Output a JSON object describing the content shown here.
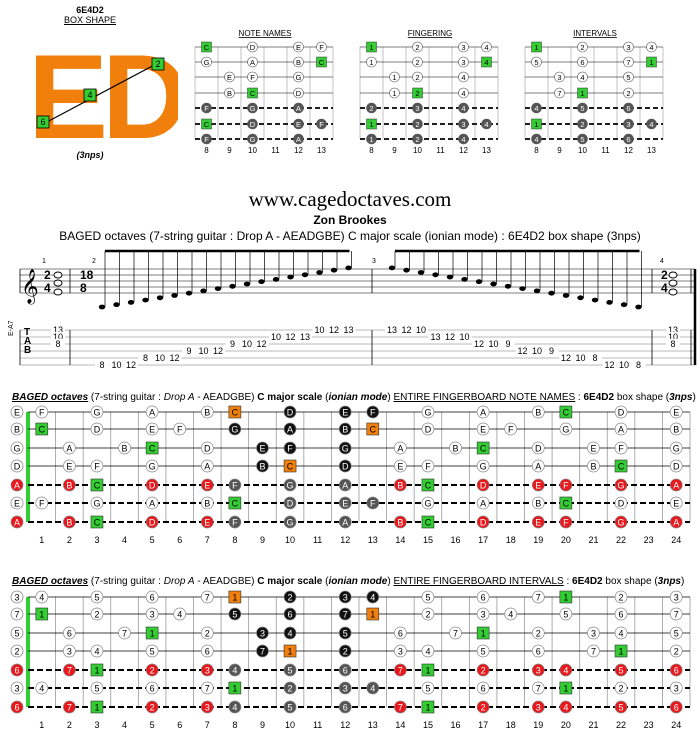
{
  "header": {
    "shape_code": "6E4D2",
    "box_shape_label": "BOX SHAPE",
    "logo_letters": "ED",
    "nps_label": "(3nps)",
    "logo_markers": [
      "2",
      "4",
      "6"
    ],
    "logo_color": "#f07f0b",
    "diagram_titles": [
      "NOTE NAMES",
      "FINGERING",
      "INTERVALS"
    ],
    "fret_numbers": [
      "8",
      "9",
      "10",
      "11",
      "12",
      "13"
    ],
    "note_names_rows": [
      [
        "C",
        "",
        "D",
        "",
        "E",
        "F"
      ],
      [
        "G",
        "",
        "A",
        "",
        "B",
        "C"
      ],
      [
        "",
        "E",
        "F",
        "",
        "G",
        ""
      ],
      [
        "",
        "B",
        "C",
        "",
        "D",
        ""
      ],
      [
        "F",
        "",
        "G",
        "",
        "A",
        ""
      ],
      [
        "C",
        "",
        "D",
        "",
        "E",
        "F"
      ],
      [
        "F",
        "",
        "G",
        "",
        "A",
        ""
      ]
    ],
    "fingering_rows": [
      [
        "1",
        "",
        "2",
        "",
        "3",
        "4"
      ],
      [
        "1",
        "",
        "2",
        "",
        "3",
        "4"
      ],
      [
        "",
        "1",
        "2",
        "",
        "4",
        ""
      ],
      [
        "",
        "1",
        "2",
        "",
        "4",
        ""
      ],
      [
        "2",
        "",
        "3",
        "",
        "4",
        ""
      ],
      [
        "1",
        "",
        "2",
        "",
        "3",
        "4"
      ],
      [
        "1",
        "",
        "2",
        "",
        "4",
        ""
      ]
    ],
    "intervals_rows": [
      [
        "1",
        "",
        "2",
        "",
        "3",
        "4"
      ],
      [
        "5",
        "",
        "6",
        "",
        "7",
        "1"
      ],
      [
        "",
        "3",
        "4",
        "",
        "5",
        ""
      ],
      [
        "",
        "7",
        "1",
        "",
        "2",
        ""
      ],
      [
        "4",
        "",
        "5",
        "",
        "6",
        ""
      ],
      [
        "1",
        "",
        "2",
        "",
        "3",
        "4"
      ],
      [
        "4",
        "",
        "5",
        "",
        "6",
        ""
      ]
    ]
  },
  "site_title": "www.cagedoctaves.com",
  "composer": "Zon Brookes",
  "subtitle": "BAGED octaves (7-string guitar : Drop A - AEADGBE) C major scale (ionian mode) : 6E4D2 box shape (3nps)",
  "staff": {
    "time_sig_left": [
      "2",
      "4"
    ],
    "time_sig_mid": [
      "18",
      "8"
    ],
    "time_sig_right": [
      "2",
      "4"
    ],
    "measure_numbers": [
      "1",
      "2",
      "3",
      "4"
    ],
    "tab_label": "T A B",
    "string_label": "E-A7",
    "tab_notes": [
      {
        "n": "13",
        "s": 1
      },
      {
        "n": "10",
        "s": 2
      },
      {
        "n": "8",
        "s": 3
      },
      {
        "n": "8",
        "s": 6
      },
      {
        "n": "10",
        "s": 6
      },
      {
        "n": "12",
        "s": 6
      },
      {
        "n": "8",
        "s": 5
      },
      {
        "n": "10",
        "s": 5
      },
      {
        "n": "12",
        "s": 5
      },
      {
        "n": "9",
        "s": 4
      },
      {
        "n": "10",
        "s": 4
      },
      {
        "n": "12",
        "s": 4
      },
      {
        "n": "9",
        "s": 3
      },
      {
        "n": "10",
        "s": 3
      },
      {
        "n": "12",
        "s": 3
      },
      {
        "n": "10",
        "s": 2
      },
      {
        "n": "12",
        "s": 2
      },
      {
        "n": "13",
        "s": 2
      },
      {
        "n": "10",
        "s": 1
      },
      {
        "n": "12",
        "s": 1
      },
      {
        "n": "13",
        "s": 1
      },
      {
        "n": "13",
        "s": 1
      },
      {
        "n": "12",
        "s": 1
      },
      {
        "n": "10",
        "s": 1
      },
      {
        "n": "13",
        "s": 2
      },
      {
        "n": "12",
        "s": 2
      },
      {
        "n": "10",
        "s": 2
      },
      {
        "n": "12",
        "s": 3
      },
      {
        "n": "10",
        "s": 3
      },
      {
        "n": "9",
        "s": 3
      },
      {
        "n": "12",
        "s": 4
      },
      {
        "n": "10",
        "s": 4
      },
      {
        "n": "9",
        "s": 4
      },
      {
        "n": "12",
        "s": 5
      },
      {
        "n": "10",
        "s": 5
      },
      {
        "n": "8",
        "s": 5
      },
      {
        "n": "12",
        "s": 6
      },
      {
        "n": "10",
        "s": 6
      },
      {
        "n": "8",
        "s": 6
      },
      {
        "n": "13",
        "s": 1
      },
      {
        "n": "10",
        "s": 2
      },
      {
        "n": "8",
        "s": 3
      }
    ]
  },
  "notes_section": {
    "title_parts": [
      "BAGED octaves",
      " (7-string guitar : ",
      "Drop A",
      " - AEADGBE) ",
      "C major scale",
      " (",
      "ionian mode",
      ") ",
      "ENTIRE FINGERBOARD NOTE NAMES",
      " : ",
      "6E4D2",
      " box shape (",
      "3nps",
      ")"
    ],
    "open": [
      "E",
      "B",
      "G",
      "D",
      "A",
      "E",
      "A"
    ],
    "rows": [
      [
        "F",
        "",
        "G",
        "",
        "A",
        "",
        "B",
        "C",
        "",
        "D",
        "",
        "E",
        "F",
        "",
        "G",
        "",
        "A",
        "",
        "B",
        "C",
        "",
        "D",
        "",
        "E"
      ],
      [
        "C",
        "",
        "D",
        "",
        "E",
        "F",
        "",
        "G",
        "",
        "A",
        "",
        "B",
        "C",
        "",
        "D",
        "",
        "E",
        "F",
        "",
        "G",
        "",
        "A",
        "",
        "B"
      ],
      [
        "",
        "A",
        "",
        "B",
        "C",
        "",
        "D",
        "",
        "E",
        "F",
        "",
        "G",
        "",
        "A",
        "",
        "B",
        "C",
        "",
        "D",
        "",
        "E",
        "F",
        "",
        "G"
      ],
      [
        "",
        "E",
        "F",
        "",
        "G",
        "",
        "A",
        "",
        "B",
        "C",
        "",
        "D",
        "",
        "E",
        "F",
        "",
        "G",
        "",
        "A",
        "",
        "B",
        "C",
        "",
        "D"
      ],
      [
        "",
        "B",
        "C",
        "",
        "D",
        "",
        "E",
        "F",
        "",
        "G",
        "",
        "A",
        "",
        "B",
        "C",
        "",
        "D",
        "",
        "E",
        "F",
        "",
        "G",
        "",
        "A"
      ],
      [
        "F",
        "",
        "G",
        "",
        "A",
        "",
        "B",
        "C",
        "",
        "D",
        "",
        "E",
        "F",
        "",
        "G",
        "",
        "A",
        "",
        "B",
        "C",
        "",
        "D",
        "",
        "E"
      ],
      [
        "",
        "B",
        "C",
        "",
        "D",
        "",
        "E",
        "F",
        "",
        "G",
        "",
        "A",
        "",
        "B",
        "C",
        "",
        "D",
        "",
        "E",
        "F",
        "",
        "G",
        "",
        "A"
      ]
    ]
  },
  "intervals_section": {
    "title_parts": [
      "BAGED octaves",
      " (7-string guitar : ",
      "Drop A",
      " - AEADGBE) ",
      "C major scale",
      " (",
      "ionian mode",
      ") ",
      "ENTIRE FINGERBOARD INTERVALS",
      " : ",
      "6E4D2",
      " box shape (",
      "3nps",
      ")"
    ],
    "open": [
      "3",
      "7",
      "5",
      "2",
      "6",
      "3",
      "6"
    ],
    "rows": [
      [
        "4",
        "",
        "5",
        "",
        "6",
        "",
        "7",
        "1",
        "",
        "2",
        "",
        "3",
        "4",
        "",
        "5",
        "",
        "6",
        "",
        "7",
        "1",
        "",
        "2",
        "",
        "3"
      ],
      [
        "1",
        "",
        "2",
        "",
        "3",
        "4",
        "",
        "5",
        "",
        "6",
        "",
        "7",
        "1",
        "",
        "2",
        "",
        "3",
        "4",
        "",
        "5",
        "",
        "6",
        "",
        "7"
      ],
      [
        "",
        "6",
        "",
        "7",
        "1",
        "",
        "2",
        "",
        "3",
        "4",
        "",
        "5",
        "",
        "6",
        "",
        "7",
        "1",
        "",
        "2",
        "",
        "3",
        "4",
        "",
        "5"
      ],
      [
        "",
        "3",
        "4",
        "",
        "5",
        "",
        "6",
        "",
        "7",
        "1",
        "",
        "2",
        "",
        "3",
        "4",
        "",
        "5",
        "",
        "6",
        "",
        "7",
        "1",
        "",
        "2"
      ],
      [
        "",
        "7",
        "1",
        "",
        "2",
        "",
        "3",
        "4",
        "",
        "5",
        "",
        "6",
        "",
        "7",
        "1",
        "",
        "2",
        "",
        "3",
        "4",
        "",
        "5",
        "",
        "6"
      ],
      [
        "4",
        "",
        "5",
        "",
        "6",
        "",
        "7",
        "1",
        "",
        "2",
        "",
        "3",
        "4",
        "",
        "5",
        "",
        "6",
        "",
        "7",
        "1",
        "",
        "2",
        "",
        "3"
      ],
      [
        "",
        "7",
        "1",
        "",
        "2",
        "",
        "3",
        "4",
        "",
        "5",
        "",
        "6",
        "",
        "7",
        "1",
        "",
        "2",
        "",
        "3",
        "4",
        "",
        "5",
        "",
        "6"
      ]
    ]
  },
  "fret_numbers": [
    "1",
    "2",
    "3",
    "4",
    "5",
    "6",
    "7",
    "8",
    "9",
    "10",
    "11",
    "12",
    "13",
    "14",
    "15",
    "16",
    "17",
    "18",
    "19",
    "20",
    "21",
    "22",
    "23",
    "24"
  ],
  "colors": {
    "root_green": "#33cc33",
    "box_orange": "#f07f0b",
    "red_string": "#e8181d",
    "black_note": "#111111",
    "grey_note": "#555555"
  }
}
